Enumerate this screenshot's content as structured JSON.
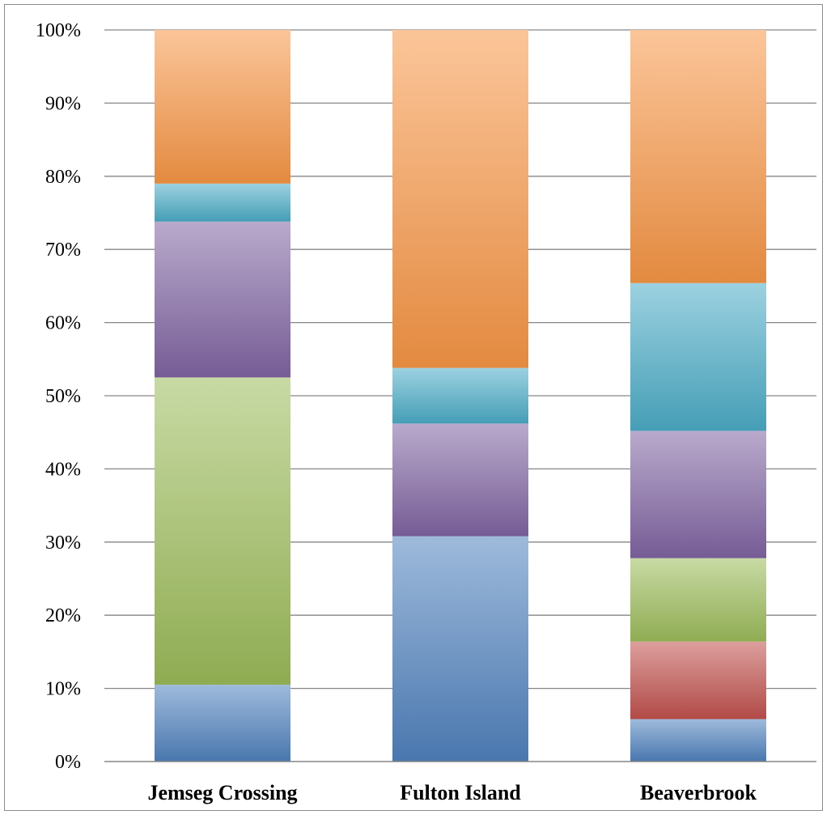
{
  "chart_data": {
    "type": "bar",
    "stacked": true,
    "percent_stacked": true,
    "categories": [
      "Jemseg Crossing",
      "Fulton Island",
      "Beaverbrook"
    ],
    "series": [
      {
        "color": "#4f81bd",
        "values": [
          10.5,
          30.8,
          5.8
        ]
      },
      {
        "color": "#c0504d",
        "values": [
          0,
          0,
          10.6
        ]
      },
      {
        "color": "#9bbb59",
        "values": [
          42.0,
          0,
          11.4
        ]
      },
      {
        "color": "#8064a2",
        "values": [
          21.3,
          15.4,
          17.4
        ]
      },
      {
        "color": "#4bacc6",
        "values": [
          5.2,
          7.6,
          20.2
        ]
      },
      {
        "color": "#f79646",
        "values": [
          21.0,
          46.2,
          34.6
        ]
      }
    ],
    "ylim": [
      0,
      100
    ],
    "yticks": [
      "0%",
      "10%",
      "20%",
      "30%",
      "40%",
      "50%",
      "60%",
      "70%",
      "80%",
      "90%",
      "100%"
    ],
    "grid": true,
    "legend": "none"
  }
}
